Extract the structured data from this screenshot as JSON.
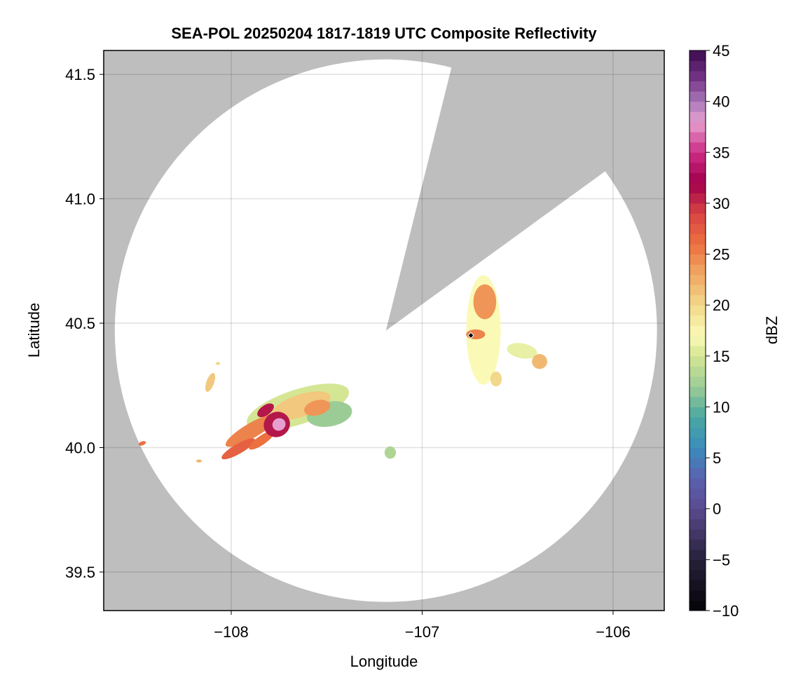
{
  "chart_data": {
    "type": "heatmap",
    "title": "SEA-POL 20250204 1817-1819 UTC Composite Reflectivity",
    "xlabel": "Longitude",
    "ylabel": "Latitude",
    "xlim": [
      -108.668,
      -105.732
    ],
    "ylim": [
      39.345,
      41.596
    ],
    "xticks": [
      -108,
      -107,
      -106
    ],
    "xtick_labels": [
      "−108",
      "−107",
      "−106"
    ],
    "yticks": [
      39.5,
      40.0,
      40.5,
      41.0,
      41.5
    ],
    "ytick_labels": [
      "39.5",
      "40.0",
      "40.5",
      "41.0",
      "41.5"
    ],
    "grid": true,
    "no_data_color": "#bebebe",
    "coverage": {
      "center_lon": -107.19,
      "center_lat": 40.47,
      "radius_lon_deg": 1.42,
      "radius_lat_deg": 1.09,
      "blocked_azimuth_deg": [
        14,
        54
      ]
    },
    "colorbar": {
      "label": "dBZ",
      "range": [
        -10,
        45
      ],
      "ticks": [
        -10,
        -5,
        0,
        5,
        10,
        15,
        20,
        25,
        30,
        35,
        40,
        45
      ],
      "tick_labels": [
        "−10",
        "−5",
        "0",
        "5",
        "10",
        "15",
        "20",
        "25",
        "30",
        "35",
        "40",
        "45"
      ],
      "bin_width": 1,
      "colormap": [
        [
          -10,
          "#050308"
        ],
        [
          -5,
          "#27213a"
        ],
        [
          0,
          "#5a4a8e"
        ],
        [
          3,
          "#5a62b0"
        ],
        [
          6,
          "#3a8cbc"
        ],
        [
          9,
          "#4aa8a0"
        ],
        [
          12,
          "#9ccc96"
        ],
        [
          15,
          "#d4e694"
        ],
        [
          17,
          "#fafab6"
        ],
        [
          20,
          "#f2d88a"
        ],
        [
          23,
          "#f0a864"
        ],
        [
          26,
          "#ec7040"
        ],
        [
          29,
          "#d84444"
        ],
        [
          32,
          "#a2004c"
        ],
        [
          35,
          "#cc2c84"
        ],
        [
          38,
          "#e6a0d0"
        ],
        [
          40,
          "#a878b8"
        ],
        [
          42,
          "#7a3a8a"
        ],
        [
          45,
          "#3c0a50"
        ]
      ]
    },
    "echoes": [
      {
        "lon": -107.651,
        "lat": 40.163,
        "rx": 0.28,
        "ry": 0.07,
        "rot": -18,
        "dbz": 15
      },
      {
        "lon": -107.486,
        "lat": 40.135,
        "rx": 0.12,
        "ry": 0.05,
        "rot": -10,
        "dbz": 12
      },
      {
        "lon": -107.633,
        "lat": 40.169,
        "rx": 0.16,
        "ry": 0.045,
        "rot": -18,
        "dbz": 21
      },
      {
        "lon": -107.55,
        "lat": 40.16,
        "rx": 0.07,
        "ry": 0.03,
        "rot": -15,
        "dbz": 24
      },
      {
        "lon": -107.89,
        "lat": 40.07,
        "rx": 0.16,
        "ry": 0.03,
        "rot": -30,
        "dbz": 25
      },
      {
        "lon": -107.963,
        "lat": 39.995,
        "rx": 0.1,
        "ry": 0.02,
        "rot": -30,
        "dbz": 27
      },
      {
        "lon": -107.84,
        "lat": 40.03,
        "rx": 0.08,
        "ry": 0.018,
        "rot": -35,
        "dbz": 26
      },
      {
        "lon": -107.761,
        "lat": 40.093,
        "rx": 0.07,
        "ry": 0.05,
        "rot": -30,
        "dbz": 31
      },
      {
        "lon": -107.75,
        "lat": 40.093,
        "rx": 0.035,
        "ry": 0.025,
        "rot": -30,
        "dbz": 38
      },
      {
        "lon": -107.82,
        "lat": 40.15,
        "rx": 0.05,
        "ry": 0.02,
        "rot": -35,
        "dbz": 31
      },
      {
        "lon": -106.679,
        "lat": 40.473,
        "rx": 0.09,
        "ry": 0.22,
        "rot": 0,
        "dbz": 17
      },
      {
        "lon": -106.672,
        "lat": 40.586,
        "rx": 0.06,
        "ry": 0.07,
        "rot": 0,
        "dbz": 24
      },
      {
        "lon": -106.72,
        "lat": 40.455,
        "rx": 0.05,
        "ry": 0.02,
        "rot": 0,
        "dbz": 25
      },
      {
        "lon": -106.477,
        "lat": 40.389,
        "rx": 0.08,
        "ry": 0.03,
        "rot": 10,
        "dbz": 16
      },
      {
        "lon": -106.385,
        "lat": 40.346,
        "rx": 0.04,
        "ry": 0.03,
        "rot": 0,
        "dbz": 22
      },
      {
        "lon": -106.613,
        "lat": 40.276,
        "rx": 0.03,
        "ry": 0.03,
        "rot": 0,
        "dbz": 20
      },
      {
        "lon": -107.167,
        "lat": 39.98,
        "rx": 0.03,
        "ry": 0.025,
        "rot": 0,
        "dbz": 13
      },
      {
        "lon": -108.466,
        "lat": 40.017,
        "rx": 0.02,
        "ry": 0.008,
        "rot": -20,
        "dbz": 26
      },
      {
        "lon": -108.169,
        "lat": 39.946,
        "rx": 0.015,
        "ry": 0.006,
        "rot": 0,
        "dbz": 22
      },
      {
        "lon": -108.11,
        "lat": 40.262,
        "rx": 0.02,
        "ry": 0.04,
        "rot": 20,
        "dbz": 21
      },
      {
        "lon": -108.07,
        "lat": 40.338,
        "rx": 0.012,
        "ry": 0.006,
        "rot": 0,
        "dbz": 20
      }
    ],
    "marker": {
      "lon": -106.745,
      "lat": 40.451,
      "color": "#000000"
    }
  }
}
